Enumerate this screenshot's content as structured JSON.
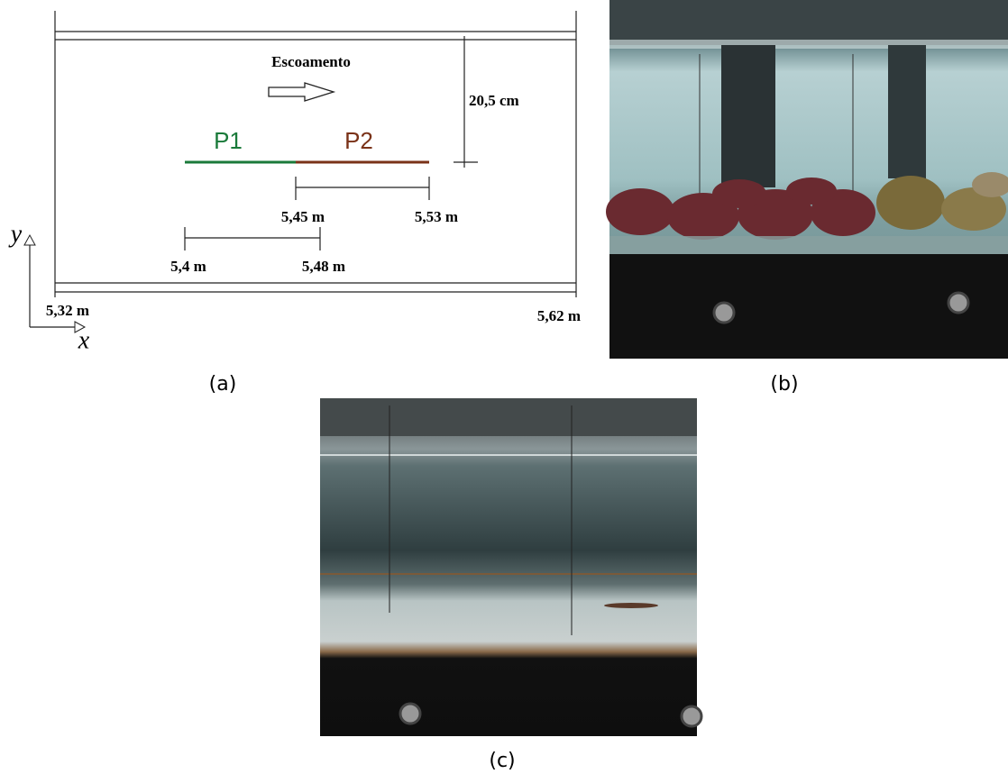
{
  "diagram": {
    "flow_label": "Escoamento",
    "depth_label": "20,5 cm",
    "profiles": [
      {
        "label": "P1",
        "color": "#1a7a3a"
      },
      {
        "label": "P2",
        "color": "#7a3218"
      }
    ],
    "dimensions": [
      {
        "start": "5,45 m",
        "end": "5,53 m"
      },
      {
        "start": "5,4 m",
        "end": "5,48 m"
      }
    ],
    "channel": {
      "start": "5,32 m",
      "end": "5,62 m"
    },
    "axes": {
      "y": "y",
      "x": "x"
    }
  },
  "captions": [
    "(a)",
    "(b)",
    "(c)"
  ]
}
